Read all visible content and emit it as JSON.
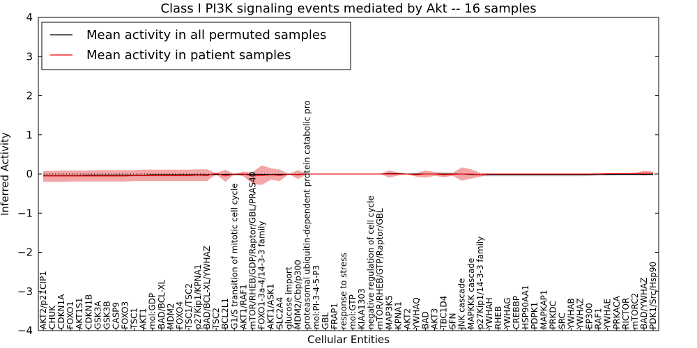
{
  "chart_data": {
    "type": "line",
    "title": "Class I PI3K signaling events mediated by Akt -- 16 samples",
    "xlabel": "Cellular Entities",
    "ylabel": "Inferred Activity",
    "ylim": [
      -4,
      4
    ],
    "yticks": [
      -4,
      -3,
      -2,
      -1,
      0,
      1,
      2,
      3,
      4
    ],
    "ytick_labels": [
      "−4",
      "−3",
      "−2",
      "−1",
      "0",
      "1",
      "2",
      "3",
      "4"
    ],
    "legend_position": "top-left",
    "colors": {
      "permuted": "#000000",
      "patient": "#ff0000",
      "band": "#f08080",
      "permuted_band": "#c8c8dc",
      "zero_line": "#000000"
    },
    "categories": [
      "AKT2/p21CIP1",
      "CHUK",
      "CDKN1A",
      "FOXO1",
      "AKT1S1",
      "CDKN1B",
      "GSK3A",
      "GSK3B",
      "CASP9",
      "FOXO3",
      "TSC1",
      "AKT1",
      "mol:GDP",
      "BAD/BCL-XL",
      "MDM2",
      "FOXO4",
      "TSC1/TSC2",
      "p27Kip1/KPNA1",
      "BAD/BCL-XL/YWHAZ",
      "TSC2",
      "BCL2L1",
      "G1/S transition of mitotic cell cycle",
      "AKT1/RAF1",
      "mTOR/RHEB/GDP/Raptor/GBL/PRAS40",
      "FOXO1-3a-4/14-3-3 family",
      "AKT1/ASK1",
      "SLC2A4",
      "glucose import",
      "MDM2/Cbp/p300",
      "proteasomal ubiquitin-dependent protein catabolic pro",
      "mol:PI-3-4-5-P3",
      "GBL",
      "FRAP1",
      "response to stress",
      "mol:GTP",
      "KIAA1303",
      "negative regulation of cell cycle",
      "mTOR/RHEB/GTP/Raptor/GBL",
      "MAP3K5",
      "KPNA1",
      "AKT2",
      "YWHAQ",
      "BAD",
      "AKT3",
      "TBC1D4",
      "SFN",
      "JNK cascade",
      "MAPKKK cascade",
      "p27Kip1/14-3-3 family",
      "YWHAH",
      "RHEB",
      "YWHAG",
      "CREBBP",
      "HSP90AA1",
      "PDPK1",
      "MAPKAP1",
      "PRKDC",
      "SRC",
      "YWHAB",
      "YWHAZ",
      "EP300",
      "RAF1",
      "YWHAE",
      "PRKACA",
      "RICTOR",
      "mTORC2",
      "BAD/YWHAZ",
      "PDK1/Src/Hsp90"
    ],
    "series": [
      {
        "name": "Mean activity in all permuted samples",
        "values": [
          -0.04,
          -0.04,
          -0.04,
          -0.04,
          -0.04,
          -0.03,
          -0.03,
          -0.03,
          -0.03,
          -0.03,
          -0.03,
          -0.03,
          -0.02,
          -0.02,
          -0.02,
          -0.02,
          -0.02,
          -0.02,
          -0.02,
          -0.01,
          -0.01,
          -0.01,
          -0.01,
          -0.01,
          -0.01,
          -0.01,
          -0.01,
          -0.01,
          -0.01,
          0.0,
          0.0,
          0.0,
          0.0,
          0.0,
          0.0,
          0.0,
          0.0,
          0.0,
          0.01,
          0.01,
          0.0,
          0.0,
          0.0,
          0.0,
          0.0,
          0.0,
          0.0,
          -0.01,
          -0.02,
          -0.02,
          -0.02,
          -0.02,
          -0.02,
          -0.02,
          -0.02,
          -0.02,
          -0.02,
          -0.02,
          -0.02,
          -0.02,
          -0.02,
          -0.01,
          -0.01,
          -0.01,
          -0.01,
          -0.01,
          -0.01,
          -0.01
        ]
      },
      {
        "name": "Mean activity in patient samples",
        "values": [
          -0.05,
          -0.05,
          -0.05,
          -0.05,
          -0.05,
          -0.05,
          -0.05,
          -0.05,
          -0.05,
          -0.05,
          -0.04,
          -0.04,
          -0.04,
          -0.04,
          -0.04,
          -0.04,
          -0.04,
          -0.03,
          -0.04,
          0.02,
          -0.05,
          0.0,
          0.0,
          -0.05,
          -0.04,
          -0.02,
          -0.04,
          0.0,
          -0.02,
          0.0,
          0.0,
          0.0,
          0.0,
          0.0,
          0.0,
          0.0,
          0.0,
          0.0,
          0.0,
          0.0,
          0.0,
          -0.02,
          0.0,
          0.0,
          -0.02,
          -0.01,
          0.0,
          0.0,
          -0.02,
          0.0,
          0.0,
          0.0,
          0.0,
          0.0,
          0.0,
          0.0,
          0.0,
          0.0,
          0.0,
          0.0,
          0.0,
          0.0,
          0.01,
          0.01,
          0.01,
          0.01,
          0.02,
          0.02
        ]
      }
    ],
    "patient_band": {
      "upper": [
        0.08,
        0.08,
        0.09,
        0.09,
        0.09,
        0.09,
        0.1,
        0.1,
        0.1,
        0.1,
        0.1,
        0.11,
        0.11,
        0.11,
        0.11,
        0.11,
        0.11,
        0.12,
        0.12,
        0.02,
        0.11,
        0.0,
        0.06,
        0.05,
        0.22,
        0.15,
        0.11,
        0.0,
        0.1,
        0.0,
        0.0,
        0.0,
        0.0,
        0.0,
        0.0,
        0.0,
        0.0,
        0.0,
        0.09,
        0.04,
        0.01,
        0.02,
        0.09,
        0.05,
        0.04,
        0.03,
        0.17,
        0.12,
        0.03,
        0.01,
        0.01,
        0.01,
        0.01,
        0.01,
        0.01,
        0.01,
        0.01,
        0.01,
        0.01,
        0.01,
        0.01,
        0.02,
        0.02,
        0.02,
        0.02,
        0.03,
        0.08,
        0.06
      ],
      "lower": [
        -0.2,
        -0.2,
        -0.2,
        -0.19,
        -0.19,
        -0.19,
        -0.19,
        -0.19,
        -0.19,
        -0.19,
        -0.18,
        -0.18,
        -0.18,
        -0.18,
        -0.18,
        -0.18,
        -0.18,
        -0.18,
        -0.18,
        0.0,
        -0.2,
        0.0,
        -0.06,
        -0.25,
        -0.28,
        -0.15,
        -0.18,
        0.0,
        -0.13,
        0.0,
        0.0,
        0.0,
        0.0,
        0.0,
        0.0,
        0.0,
        0.0,
        0.0,
        -0.09,
        -0.04,
        -0.01,
        -0.07,
        -0.09,
        -0.05,
        -0.08,
        -0.05,
        -0.17,
        -0.12,
        -0.07,
        -0.01,
        -0.01,
        -0.01,
        -0.01,
        -0.01,
        -0.01,
        -0.01,
        -0.01,
        -0.01,
        -0.01,
        -0.01,
        -0.01,
        0.0,
        0.0,
        0.0,
        0.0,
        -0.01,
        -0.04,
        -0.02
      ]
    },
    "permuted_band": {
      "upper": [
        0.02,
        0.02,
        0.02,
        0.02,
        0.02,
        0.02,
        0.02,
        0.02,
        0.02,
        0.02,
        0.02,
        0.02,
        0.02,
        0.02,
        0.02,
        0.02,
        0.02,
        0.02,
        0.02,
        0.02,
        0.02,
        0.02,
        0.02,
        0.02,
        0.02,
        0.02,
        0.02,
        0.02,
        0.02,
        0.02,
        0.02,
        0.02,
        0.02,
        0.02,
        0.02,
        0.02,
        0.02,
        0.02,
        0.02,
        0.02,
        0.02,
        0.02,
        0.02,
        0.02,
        0.02,
        0.02,
        0.02,
        0.01,
        0.0,
        0.0,
        0.0,
        0.0,
        0.0,
        0.0,
        0.0,
        0.0,
        0.0,
        0.0,
        0.0,
        0.0,
        0.0,
        0.01,
        0.01,
        0.01,
        0.01,
        0.01,
        0.01,
        0.01
      ],
      "lower": [
        -0.1,
        -0.1,
        -0.1,
        -0.1,
        -0.1,
        -0.09,
        -0.09,
        -0.09,
        -0.09,
        -0.09,
        -0.09,
        -0.08,
        -0.08,
        -0.08,
        -0.08,
        -0.08,
        -0.07,
        -0.07,
        -0.07,
        -0.06,
        -0.06,
        -0.05,
        -0.05,
        -0.05,
        -0.04,
        -0.04,
        -0.03,
        -0.03,
        -0.03,
        -0.02,
        -0.02,
        -0.02,
        -0.02,
        -0.02,
        -0.02,
        -0.02,
        -0.02,
        -0.02,
        -0.02,
        -0.02,
        -0.02,
        -0.02,
        -0.02,
        -0.02,
        -0.02,
        -0.03,
        -0.04,
        -0.05,
        -0.06,
        -0.06,
        -0.06,
        -0.06,
        -0.06,
        -0.06,
        -0.06,
        -0.06,
        -0.06,
        -0.06,
        -0.06,
        -0.06,
        -0.05,
        -0.05,
        -0.05,
        -0.04,
        -0.04,
        -0.04,
        -0.03,
        -0.03
      ]
    }
  }
}
